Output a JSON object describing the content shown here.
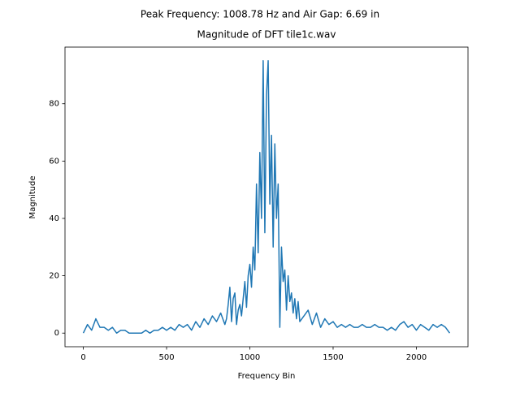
{
  "chart_data": {
    "type": "line",
    "suptitle": "Peak Frequency: 1008.78 Hz and Air Gap: 6.69 in",
    "title": "Magnitude of DFT tile1c.wav",
    "xlabel": "Frequency Bin",
    "ylabel": "Magnitude",
    "x": [
      0,
      25,
      50,
      75,
      100,
      125,
      150,
      175,
      200,
      225,
      250,
      275,
      300,
      325,
      350,
      375,
      400,
      425,
      450,
      475,
      500,
      525,
      550,
      575,
      600,
      625,
      650,
      675,
      700,
      725,
      750,
      775,
      800,
      825,
      850,
      860,
      870,
      880,
      890,
      900,
      910,
      920,
      930,
      940,
      950,
      960,
      970,
      980,
      990,
      1000,
      1010,
      1020,
      1030,
      1040,
      1050,
      1060,
      1070,
      1080,
      1090,
      1100,
      1110,
      1120,
      1130,
      1140,
      1150,
      1160,
      1170,
      1180,
      1190,
      1200,
      1210,
      1220,
      1230,
      1240,
      1250,
      1260,
      1270,
      1280,
      1290,
      1300,
      1325,
      1350,
      1375,
      1400,
      1425,
      1450,
      1475,
      1500,
      1525,
      1550,
      1575,
      1600,
      1625,
      1650,
      1675,
      1700,
      1725,
      1750,
      1775,
      1800,
      1825,
      1850,
      1875,
      1900,
      1925,
      1950,
      1975,
      2000,
      2025,
      2050,
      2075,
      2100,
      2125,
      2150,
      2175,
      2200
    ],
    "series": [
      {
        "color": "#1f77b4",
        "values": [
          0,
          3,
          1,
          5,
          2,
          2,
          1,
          2,
          0,
          1,
          1,
          0,
          0,
          0,
          0,
          1,
          0,
          1,
          1,
          2,
          1,
          2,
          1,
          3,
          2,
          3,
          1,
          4,
          2,
          5,
          3,
          6,
          4,
          7,
          3,
          5,
          10,
          16,
          4,
          12,
          14,
          3,
          8,
          10,
          6,
          12,
          18,
          9,
          20,
          24,
          16,
          30,
          22,
          52,
          28,
          63,
          40,
          95,
          35,
          83,
          95,
          45,
          69,
          30,
          66,
          40,
          52,
          2,
          30,
          18,
          22,
          8,
          20,
          11,
          14,
          7,
          12,
          5,
          11,
          4,
          6,
          8,
          3,
          7,
          2,
          5,
          3,
          4,
          2,
          3,
          2,
          3,
          2,
          2,
          3,
          2,
          2,
          3,
          2,
          2,
          1,
          2,
          1,
          3,
          4,
          2,
          3,
          1,
          3,
          2,
          1,
          3,
          2,
          3,
          2,
          0
        ]
      }
    ],
    "xlim": [
      -110,
      2310
    ],
    "ylim": [
      -4.75,
      99.75
    ],
    "xticks": [
      0,
      500,
      1000,
      1500,
      2000
    ],
    "yticks": [
      0,
      20,
      40,
      60,
      80
    ]
  }
}
